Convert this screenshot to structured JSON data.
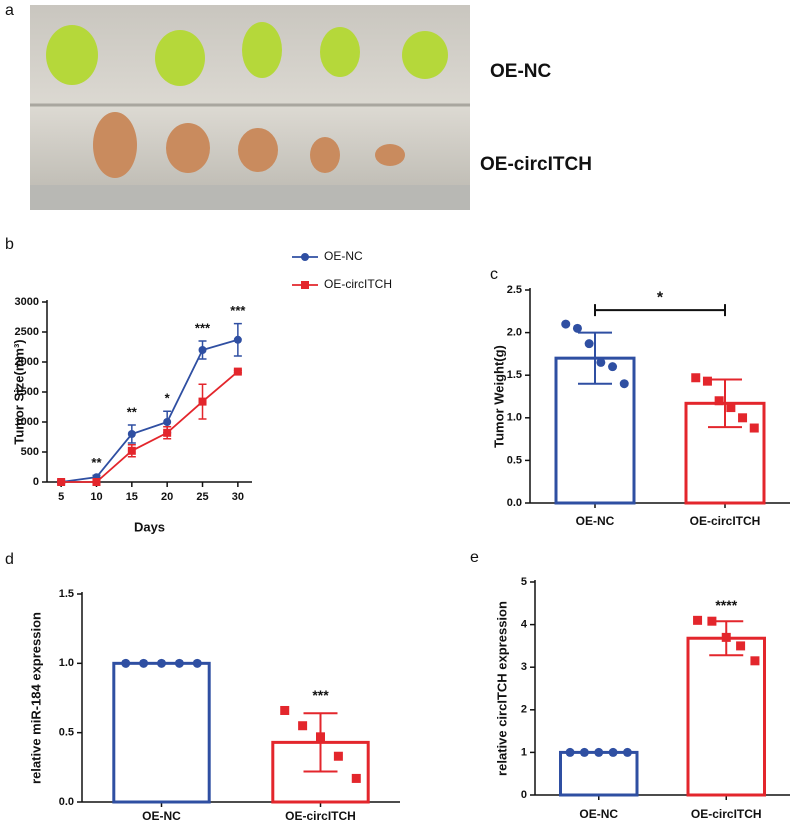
{
  "photo": {
    "panel": "a",
    "labels": [
      "OE-NC",
      "OE-circITCH"
    ]
  },
  "chart_data": [
    {
      "type": "line",
      "panel": "b",
      "x_label": "Days",
      "y_label": "Tumor Size(mm³)",
      "x": [
        5,
        10,
        15,
        20,
        25,
        30
      ],
      "xlim": [
        3,
        32
      ],
      "xticks": [
        5,
        10,
        15,
        20,
        25,
        30
      ],
      "ylim": [
        0,
        3000
      ],
      "yticks": [
        0,
        500,
        1000,
        1500,
        2000,
        2500,
        3000
      ],
      "series": [
        {
          "name": "OE-NC",
          "color": "#2f4fa2",
          "marker": "circle",
          "values": [
            0,
            80,
            800,
            1000,
            2200,
            2370
          ],
          "errors": [
            30,
            30,
            150,
            180,
            150,
            270
          ]
        },
        {
          "name": "OE-circITCH",
          "color": "#e3262c",
          "marker": "square",
          "values": [
            0,
            0,
            520,
            820,
            1340,
            1840
          ],
          "errors": [
            20,
            20,
            100,
            100,
            290,
            20
          ]
        }
      ],
      "annotations": [
        {
          "x": 10,
          "label": "**"
        },
        {
          "x": 15,
          "label": "**"
        },
        {
          "x": 20,
          "label": "*"
        },
        {
          "x": 25,
          "label": "***"
        },
        {
          "x": 30,
          "label": "***"
        }
      ],
      "legend": "upper right"
    },
    {
      "type": "bar",
      "panel": "c",
      "y_label": "Tumor Weight(g)",
      "categories": [
        "OE-NC",
        "OE-circITCH"
      ],
      "colors": [
        "#2f4fa2",
        "#e3262c"
      ],
      "values": [
        1.7,
        1.17
      ],
      "errors": [
        0.3,
        0.28
      ],
      "points": [
        [
          2.1,
          2.05,
          1.87,
          1.65,
          1.6,
          1.4
        ],
        [
          1.47,
          1.43,
          1.2,
          1.12,
          1.0,
          0.88
        ]
      ],
      "ylim": [
        0,
        2.5
      ],
      "yticks": [
        {
          "value": 0,
          "label": "0.0"
        },
        0.5,
        {
          "value": 1,
          "label": "1.0"
        },
        1.5,
        {
          "value": 2,
          "label": "2.0"
        },
        2.5
      ],
      "bracket_label": "*"
    },
    {
      "type": "bar",
      "panel": "d",
      "y_label": "relative miR-184 expression",
      "categories": [
        "OE-NC",
        "OE-circITCH"
      ],
      "colors": [
        "#2f4fa2",
        "#e3262c"
      ],
      "values": [
        1.0,
        0.43
      ],
      "errors": [
        0,
        0.21
      ],
      "points": [
        [
          1,
          1,
          1,
          1,
          1
        ],
        [
          0.66,
          0.55,
          0.47,
          0.33,
          0.17
        ]
      ],
      "ylim": [
        0,
        1.5
      ],
      "yticks": [
        {
          "value": 0,
          "label": "0.0"
        },
        0.5,
        {
          "value": 1,
          "label": "1.0"
        },
        1.5
      ],
      "bar_labels": [
        null,
        "***"
      ]
    },
    {
      "type": "bar",
      "panel": "e",
      "y_label": "relative circITCH expression",
      "categories": [
        "OE-NC",
        "OE-circITCH"
      ],
      "colors": [
        "#2f4fa2",
        "#e3262c"
      ],
      "values": [
        1.0,
        3.68
      ],
      "errors": [
        0,
        0.4
      ],
      "points": [
        [
          1,
          1,
          1,
          1,
          1
        ],
        [
          4.1,
          4.08,
          3.7,
          3.5,
          3.15
        ]
      ],
      "ylim": [
        0,
        5
      ],
      "yticks": [
        0,
        1,
        2,
        3,
        4,
        5
      ],
      "bar_labels": [
        null,
        "****"
      ]
    }
  ]
}
